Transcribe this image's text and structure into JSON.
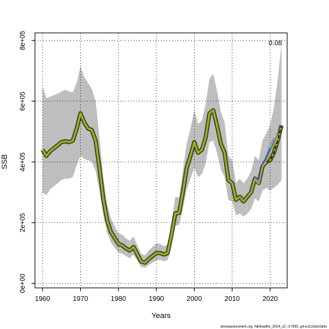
{
  "chart_data": {
    "type": "line",
    "xlabel": "Years",
    "ylabel": "SSB",
    "xlim": [
      1958,
      2024.5
    ],
    "ylim": [
      -15000,
      825000
    ],
    "x_ticks": [
      1960,
      1970,
      1980,
      1990,
      2000,
      2010,
      2020
    ],
    "x_tick_labels": [
      "1960",
      "1970",
      "1980",
      "1990",
      "2000",
      "2010",
      "2020"
    ],
    "y_ticks": [
      0,
      200000,
      400000,
      600000,
      800000
    ],
    "y_tick_labels": [
      "0e+00",
      "2e+05",
      "4e+05",
      "6e+05",
      "8e+05"
    ],
    "grid": true,
    "annotation": "0.08",
    "source_text": "stockassessment.org, NEAsaithe_2024_v2, r17965, git:ec2c2a0c6dde",
    "colors": {
      "ci_band": "#bebebe",
      "estimate": "#000000",
      "retro_main": "#7a9a2a",
      "retro_lines": [
        "#d4b32a",
        "#3a9a6a",
        "#3fb0c8",
        "#2850c8",
        "#a050c8"
      ]
    },
    "series": [
      {
        "x": [
          1960,
          1961,
          1962,
          1963,
          1964,
          1965,
          1966,
          1967,
          1968,
          1969,
          1970,
          1971,
          1972,
          1973,
          1974,
          1975,
          1976,
          1977,
          1978,
          1979,
          1980,
          1981,
          1982,
          1983,
          1984,
          1985,
          1986,
          1987,
          1988,
          1989,
          1990,
          1991,
          1992,
          1993,
          1994,
          1995,
          1996,
          1997,
          1998,
          1999,
          2000,
          2001,
          2002,
          2003,
          2004,
          2005,
          2006,
          2007,
          2008,
          2009,
          2010,
          2011,
          2012,
          2013,
          2014,
          2015,
          2016,
          2017,
          2018,
          2019,
          2020,
          2021,
          2022,
          2023
        ],
        "values": [
          440000,
          420000,
          435000,
          445000,
          455000,
          465000,
          468000,
          465000,
          470000,
          510000,
          560000,
          530000,
          510000,
          505000,
          470000,
          380000,
          280000,
          210000,
          170000,
          150000,
          130000,
          125000,
          115000,
          108000,
          120000,
          95000,
          72000,
          68000,
          80000,
          90000,
          100000,
          100000,
          95000,
          100000,
          160000,
          230000,
          232000,
          300000,
          380000,
          420000,
          465000,
          430000,
          440000,
          480000,
          560000,
          570000,
          520000,
          460000,
          430000,
          340000,
          330000,
          275000,
          285000,
          270000,
          285000,
          300000,
          345000,
          330000,
          385000,
          400000,
          405000,
          430000,
          470000,
          520000
        ],
        "upper": [
          650000,
          610000,
          615000,
          620000,
          625000,
          632000,
          638000,
          632000,
          630000,
          660000,
          715000,
          680000,
          660000,
          640000,
          600000,
          480000,
          350000,
          265000,
          215000,
          190000,
          165000,
          160000,
          148000,
          140000,
          155000,
          125000,
          98000,
          92000,
          108000,
          120000,
          132000,
          130000,
          122000,
          128000,
          200000,
          285000,
          282000,
          370000,
          460000,
          510000,
          570000,
          525000,
          535000,
          590000,
          675000,
          690000,
          635000,
          565000,
          530000,
          420000,
          405000,
          330000,
          345000,
          330000,
          345000,
          370000,
          420000,
          405000,
          470000,
          495000,
          520000,
          580000,
          670000,
          790000
        ],
        "lower": [
          300000,
          290000,
          310000,
          320000,
          330000,
          340000,
          345000,
          345000,
          350000,
          390000,
          420000,
          410000,
          405000,
          400000,
          370000,
          305000,
          225000,
          168000,
          135000,
          118000,
          102000,
          98000,
          90000,
          83000,
          94000,
          73000,
          54000,
          51000,
          60000,
          68000,
          76000,
          77000,
          73000,
          77000,
          125000,
          190000,
          192000,
          245000,
          310000,
          345000,
          380000,
          350000,
          360000,
          395000,
          465000,
          470000,
          430000,
          375000,
          350000,
          275000,
          270000,
          225000,
          230000,
          220000,
          230000,
          245000,
          280000,
          270000,
          305000,
          315000,
          305000,
          315000,
          325000,
          340000
        ]
      },
      {
        "x": [
          2016,
          2017,
          2018,
          2019,
          2020,
          2021,
          2022
        ],
        "values": [
          340000,
          325000,
          382000,
          410000,
          440000,
          470000,
          490000
        ]
      },
      {
        "x": [
          2016,
          2017,
          2018,
          2019,
          2020,
          2021
        ],
        "values": [
          348000,
          335000,
          390000,
          420000,
          455000,
          480000
        ]
      },
      {
        "x": [
          2016,
          2017,
          2018,
          2019,
          2020
        ],
        "values": [
          352000,
          340000,
          395000,
          415000,
          445000
        ]
      },
      {
        "x": [
          2016,
          2017,
          2018,
          2019,
          2020,
          2021,
          2022
        ],
        "values": [
          345000,
          330000,
          388000,
          405000,
          435000,
          462000,
          495000
        ]
      },
      {
        "x": [
          2016,
          2017,
          2018,
          2019,
          2020,
          2021,
          2022
        ],
        "values": [
          343000,
          328000,
          386000,
          402000,
          430000,
          455000,
          485000
        ]
      }
    ]
  }
}
